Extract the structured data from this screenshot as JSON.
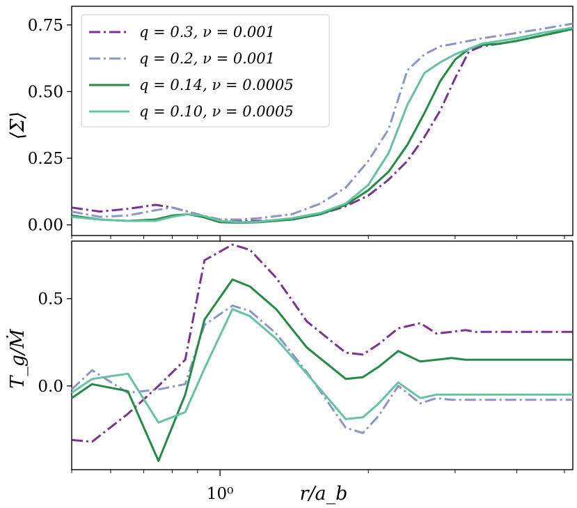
{
  "chart_data": [
    {
      "type": "line",
      "ylabel": "⟨Σ⟩",
      "xscale": "log",
      "xlim": [
        0.5,
        5.2
      ],
      "ylim": [
        -0.04,
        0.82
      ],
      "yticks": [
        0.0,
        0.25,
        0.5,
        0.75
      ],
      "ytick_labels": [
        "0.00",
        "0.25",
        "0.50",
        "0.75"
      ],
      "grid": false,
      "legend": {
        "placement": "top-left",
        "entries": [
          {
            "label": "q = 0.3,  ν = 0.001",
            "series": 0
          },
          {
            "label": "q = 0.2,  ν = 0.001",
            "series": 1
          },
          {
            "label": "q = 0.14,  ν = 0.0005",
            "series": 2
          },
          {
            "label": "q = 0.10,  ν = 0.0005",
            "series": 3
          }
        ]
      },
      "series": [
        {
          "name": "q = 0.3, ν = 0.001",
          "color": "#7b3294",
          "style": "dashdot",
          "x": [
            0.5,
            0.57,
            0.65,
            0.74,
            0.8,
            0.86,
            0.92,
            1.0,
            1.1,
            1.2,
            1.4,
            1.6,
            1.8,
            2.0,
            2.2,
            2.4,
            2.6,
            2.8,
            3.0,
            3.2,
            3.4,
            3.7,
            4.0,
            4.5,
            5.2
          ],
          "y": [
            0.065,
            0.05,
            0.06,
            0.075,
            0.065,
            0.05,
            0.035,
            0.02,
            0.015,
            0.015,
            0.02,
            0.04,
            0.07,
            0.11,
            0.17,
            0.24,
            0.33,
            0.43,
            0.55,
            0.65,
            0.67,
            0.68,
            0.69,
            0.71,
            0.735
          ]
        },
        {
          "name": "q = 0.2, ν = 0.001",
          "color": "#8c96c6",
          "style": "dashdot",
          "x": [
            0.5,
            0.57,
            0.65,
            0.74,
            0.8,
            0.86,
            0.92,
            1.0,
            1.1,
            1.2,
            1.4,
            1.6,
            1.8,
            2.0,
            2.2,
            2.4,
            2.6,
            2.8,
            3.0,
            3.2,
            3.4,
            3.7,
            4.0,
            4.5,
            5.2
          ],
          "y": [
            0.05,
            0.03,
            0.035,
            0.055,
            0.065,
            0.05,
            0.035,
            0.02,
            0.02,
            0.025,
            0.04,
            0.08,
            0.14,
            0.24,
            0.36,
            0.58,
            0.64,
            0.67,
            0.68,
            0.69,
            0.7,
            0.71,
            0.72,
            0.735,
            0.755
          ]
        },
        {
          "name": "q = 0.14, ν = 0.0005",
          "color": "#238b45",
          "style": "solid",
          "x": [
            0.5,
            0.57,
            0.65,
            0.74,
            0.8,
            0.86,
            0.92,
            1.0,
            1.1,
            1.2,
            1.4,
            1.6,
            1.8,
            2.0,
            2.2,
            2.4,
            2.6,
            2.8,
            3.0,
            3.2,
            3.4,
            3.7,
            4.0,
            4.5,
            5.2
          ],
          "y": [
            0.035,
            0.02,
            0.015,
            0.02,
            0.035,
            0.04,
            0.03,
            0.01,
            0.008,
            0.01,
            0.02,
            0.04,
            0.075,
            0.13,
            0.2,
            0.3,
            0.42,
            0.54,
            0.62,
            0.66,
            0.675,
            0.68,
            0.69,
            0.71,
            0.735
          ]
        },
        {
          "name": "q = 0.10, ν = 0.0005",
          "color": "#66c2a4",
          "style": "solid",
          "x": [
            0.5,
            0.57,
            0.65,
            0.74,
            0.8,
            0.86,
            0.92,
            1.0,
            1.1,
            1.2,
            1.4,
            1.6,
            1.8,
            2.0,
            2.2,
            2.4,
            2.6,
            2.8,
            3.0,
            3.2,
            3.4,
            3.7,
            4.0,
            4.5,
            5.2
          ],
          "y": [
            0.03,
            0.02,
            0.015,
            0.015,
            0.03,
            0.04,
            0.035,
            0.015,
            0.01,
            0.012,
            0.025,
            0.045,
            0.08,
            0.15,
            0.27,
            0.45,
            0.57,
            0.61,
            0.64,
            0.66,
            0.68,
            0.69,
            0.7,
            0.72,
            0.74
          ]
        }
      ]
    },
    {
      "type": "line",
      "xlabel": "r/a_b",
      "ylabel": "T_g/Ṁ",
      "xscale": "log",
      "xlim": [
        0.5,
        5.2
      ],
      "ylim": [
        -0.48,
        0.83
      ],
      "yticks": [
        0.0,
        0.5
      ],
      "ytick_labels": [
        "0.0",
        "0.5"
      ],
      "xticks": [
        1.0
      ],
      "xtick_labels": [
        "10⁰"
      ],
      "grid": false,
      "series": [
        {
          "name": "q = 0.3, ν = 0.001",
          "color": "#7b3294",
          "style": "dashdot",
          "x": [
            0.5,
            0.55,
            0.65,
            0.75,
            0.85,
            0.93,
            1.06,
            1.15,
            1.3,
            1.5,
            1.8,
            1.95,
            2.1,
            2.3,
            2.55,
            2.75,
            2.95,
            3.15,
            3.3,
            3.5,
            3.7,
            4.0,
            4.5,
            5.2
          ],
          "y": [
            -0.31,
            -0.32,
            -0.16,
            0.0,
            0.15,
            0.72,
            0.81,
            0.78,
            0.62,
            0.37,
            0.19,
            0.18,
            0.24,
            0.33,
            0.36,
            0.3,
            0.31,
            0.32,
            0.31,
            0.31,
            0.31,
            0.31,
            0.31,
            0.31
          ]
        },
        {
          "name": "q = 0.2, ν = 0.001",
          "color": "#8c96c6",
          "style": "dashdot",
          "x": [
            0.5,
            0.55,
            0.65,
            0.75,
            0.85,
            0.93,
            1.06,
            1.15,
            1.3,
            1.5,
            1.8,
            1.95,
            2.1,
            2.3,
            2.55,
            2.75,
            2.95,
            3.15,
            3.3,
            3.5,
            3.7,
            4.0,
            4.5,
            5.2
          ],
          "y": [
            -0.02,
            0.09,
            -0.04,
            -0.02,
            0.01,
            0.35,
            0.46,
            0.43,
            0.3,
            0.08,
            -0.24,
            -0.27,
            -0.17,
            0.0,
            -0.1,
            -0.07,
            -0.08,
            -0.08,
            -0.08,
            -0.08,
            -0.08,
            -0.08,
            -0.08,
            -0.08
          ]
        },
        {
          "name": "q = 0.14, ν = 0.0005",
          "color": "#238b45",
          "style": "solid",
          "x": [
            0.5,
            0.55,
            0.65,
            0.75,
            0.85,
            0.93,
            1.06,
            1.15,
            1.3,
            1.5,
            1.8,
            1.95,
            2.1,
            2.3,
            2.55,
            2.75,
            2.95,
            3.15,
            3.3,
            3.5,
            3.7,
            4.0,
            4.5,
            5.2
          ],
          "y": [
            -0.07,
            0.01,
            -0.03,
            -0.43,
            -0.05,
            0.38,
            0.61,
            0.57,
            0.44,
            0.22,
            0.04,
            0.05,
            0.11,
            0.2,
            0.14,
            0.15,
            0.16,
            0.15,
            0.15,
            0.15,
            0.15,
            0.15,
            0.15,
            0.15
          ]
        },
        {
          "name": "q = 0.10, ν = 0.0005",
          "color": "#66c2a4",
          "style": "solid",
          "x": [
            0.5,
            0.55,
            0.65,
            0.75,
            0.85,
            0.93,
            1.06,
            1.15,
            1.3,
            1.5,
            1.8,
            1.95,
            2.1,
            2.3,
            2.55,
            2.75,
            2.95,
            3.15,
            3.3,
            3.5,
            3.7,
            4.0,
            4.5,
            5.2
          ],
          "y": [
            -0.04,
            0.04,
            0.07,
            -0.21,
            -0.15,
            0.1,
            0.44,
            0.4,
            0.27,
            0.07,
            -0.19,
            -0.18,
            -0.1,
            0.02,
            -0.07,
            -0.05,
            -0.05,
            -0.05,
            -0.05,
            -0.05,
            -0.05,
            -0.05,
            -0.05,
            -0.05
          ]
        }
      ]
    }
  ]
}
